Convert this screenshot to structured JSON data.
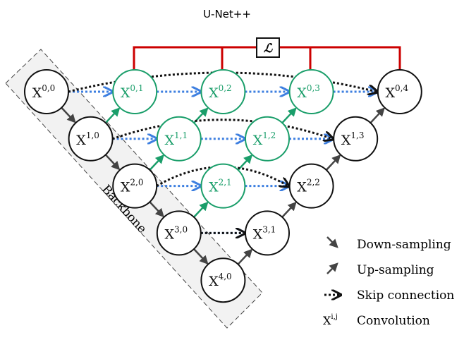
{
  "title": "U-Net++",
  "loss_label": "ℒ",
  "backbone_label": "Backbone",
  "colors": {
    "green": "#1a9e6a",
    "red": "#cc0000",
    "blue": "#3d7fe0",
    "black": "#111111",
    "arrow": "#444444"
  },
  "nodes": [
    {
      "id": "0,0",
      "label": "X",
      "sup": "0,0",
      "col": 0,
      "row": 0,
      "green": false
    },
    {
      "id": "1,0",
      "label": "X",
      "sup": "1,0",
      "col": 1,
      "row": 1,
      "green": false
    },
    {
      "id": "2,0",
      "label": "X",
      "sup": "2,0",
      "col": 2,
      "row": 2,
      "green": false
    },
    {
      "id": "3,0",
      "label": "X",
      "sup": "3,0",
      "col": 3,
      "row": 3,
      "green": false
    },
    {
      "id": "4,0",
      "label": "X",
      "sup": "4,0",
      "col": 4,
      "row": 4,
      "green": false
    },
    {
      "id": "0,1",
      "label": "X",
      "sup": "0,1",
      "col": 2,
      "row": 0,
      "green": true
    },
    {
      "id": "0,2",
      "label": "X",
      "sup": "0,2",
      "col": 4,
      "row": 0,
      "green": true
    },
    {
      "id": "0,3",
      "label": "X",
      "sup": "0,3",
      "col": 6,
      "row": 0,
      "green": true
    },
    {
      "id": "0,4",
      "label": "X",
      "sup": "0,4",
      "col": 8,
      "row": 0,
      "green": false
    },
    {
      "id": "1,1",
      "label": "X",
      "sup": "1,1",
      "col": 3,
      "row": 1,
      "green": true
    },
    {
      "id": "1,2",
      "label": "X",
      "sup": "1,2",
      "col": 5,
      "row": 1,
      "green": true
    },
    {
      "id": "1,3",
      "label": "X",
      "sup": "1,3",
      "col": 7,
      "row": 1,
      "green": false
    },
    {
      "id": "2,1",
      "label": "X",
      "sup": "2,1",
      "col": 4,
      "row": 2,
      "green": true
    },
    {
      "id": "2,2",
      "label": "X",
      "sup": "2,2",
      "col": 6,
      "row": 2,
      "green": false
    },
    {
      "id": "3,1",
      "label": "X",
      "sup": "3,1",
      "col": 5,
      "row": 3,
      "green": false
    }
  ],
  "legend": [
    {
      "icon": "down-arrow-icon",
      "label": "Down-sampling"
    },
    {
      "icon": "up-arrow-icon",
      "label": "Up-sampling"
    },
    {
      "icon": "skip-arrow-icon",
      "label": "Skip connection"
    },
    {
      "icon": "convolution-symbol",
      "symbol": "X",
      "sup": "i,j",
      "label": "Convolution"
    }
  ]
}
